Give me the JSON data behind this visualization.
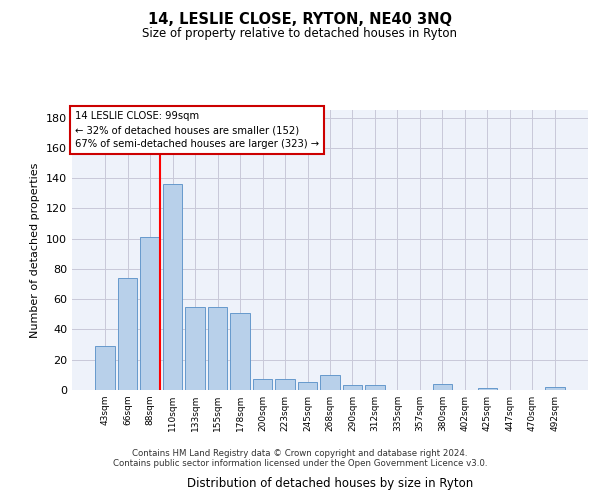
{
  "title": "14, LESLIE CLOSE, RYTON, NE40 3NQ",
  "subtitle": "Size of property relative to detached houses in Ryton",
  "xlabel": "Distribution of detached houses by size in Ryton",
  "ylabel": "Number of detached properties",
  "bar_labels": [
    "43sqm",
    "66sqm",
    "88sqm",
    "110sqm",
    "133sqm",
    "155sqm",
    "178sqm",
    "200sqm",
    "223sqm",
    "245sqm",
    "268sqm",
    "290sqm",
    "312sqm",
    "335sqm",
    "357sqm",
    "380sqm",
    "402sqm",
    "425sqm",
    "447sqm",
    "470sqm",
    "492sqm"
  ],
  "bar_values": [
    29,
    74,
    101,
    136,
    55,
    55,
    51,
    7,
    7,
    5,
    10,
    3,
    3,
    0,
    0,
    4,
    0,
    1,
    0,
    0,
    2
  ],
  "bar_color": "#b8d0ea",
  "bar_edge_color": "#6699cc",
  "grid_color": "#c8c8d8",
  "background_color": "#eef2fa",
  "vline_bar_index": 2,
  "annotation_text1": "14 LESLIE CLOSE: 99sqm",
  "annotation_text2": "← 32% of detached houses are smaller (152)",
  "annotation_text3": "67% of semi-detached houses are larger (323) →",
  "annotation_box_color": "#ffffff",
  "annotation_border_color": "#cc0000",
  "ylim": [
    0,
    185
  ],
  "yticks": [
    0,
    20,
    40,
    60,
    80,
    100,
    120,
    140,
    160,
    180
  ],
  "footer1": "Contains HM Land Registry data © Crown copyright and database right 2024.",
  "footer2": "Contains public sector information licensed under the Open Government Licence v3.0."
}
